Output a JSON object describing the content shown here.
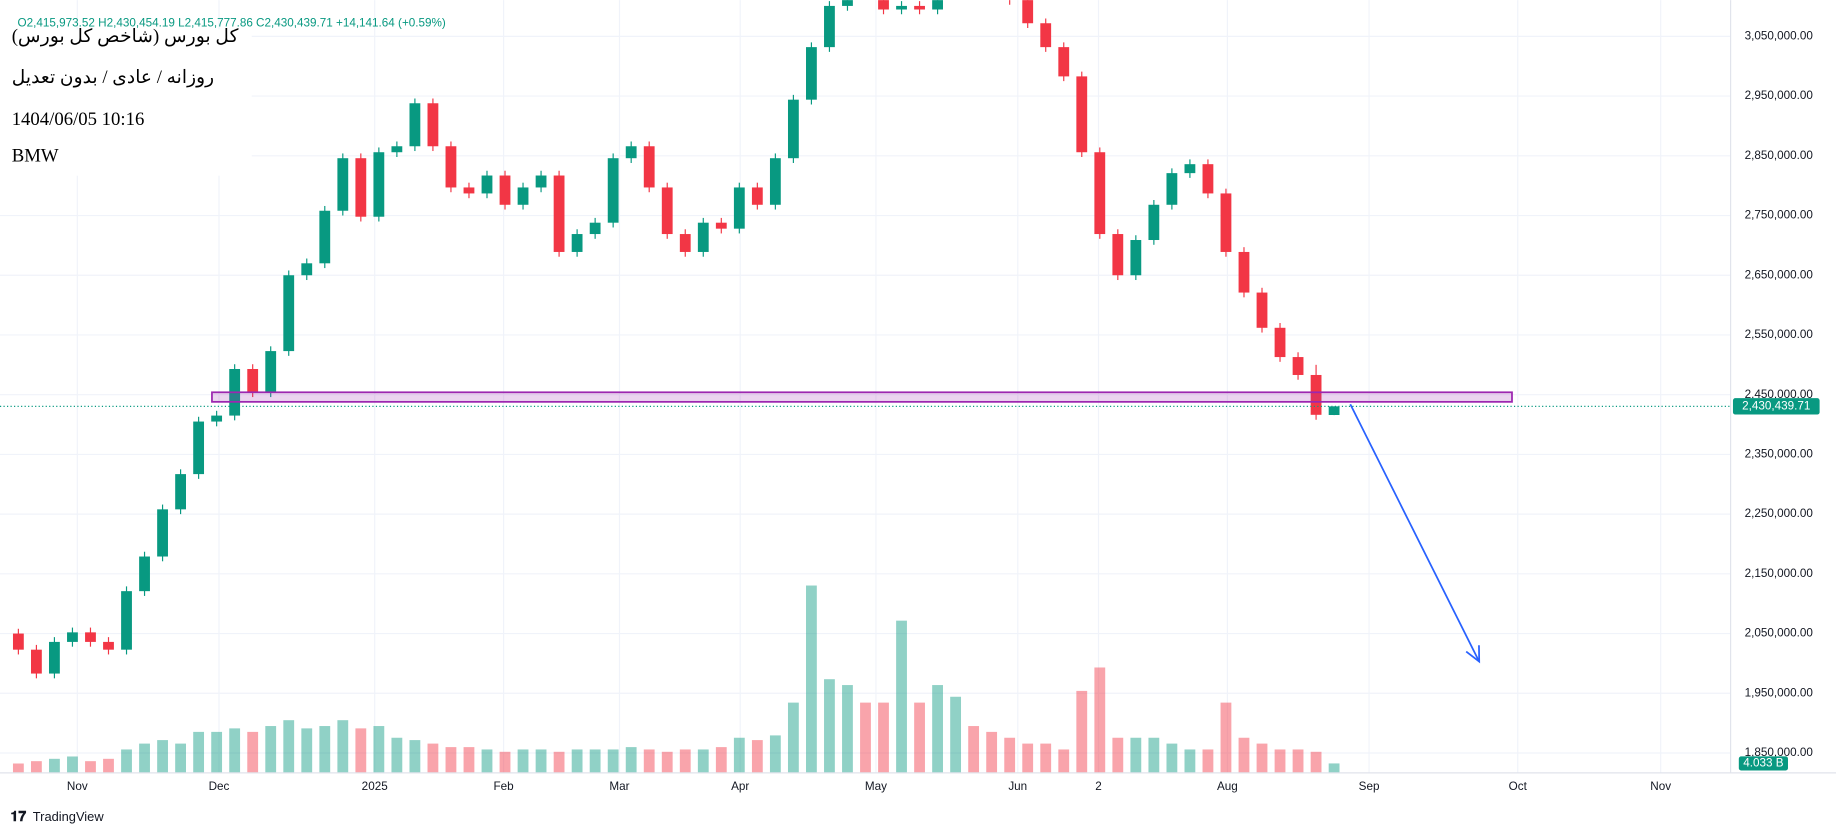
{
  "chart_data": {
    "type": "candlestick",
    "title": "کل بورس (شاخص کل بورس)",
    "subtitle": "روزانه / عادی / بدون تعدیل",
    "timestamp": "1404/06/05 10:16",
    "watermark": "BMW",
    "ohlc_legend": "O2,415,973.52 H2,430,454.19 L2,415,777.86 C2,430,439.71 +14,141.64 (+0.59%)",
    "brand": "TradingView",
    "up_color": "#089981",
    "down_color": "#f23645",
    "open": [
      2050000,
      2023000,
      1983000,
      2036000,
      2052000,
      2036000,
      2023000,
      2121000,
      2179000,
      2258000,
      2317000,
      2405000,
      2415000,
      2493000,
      2454000,
      2523000,
      2650000,
      2670000,
      2758000,
      2846000,
      2748000,
      2856000,
      2866000,
      2938000,
      2866000,
      2797000,
      2787000,
      2817000,
      2768000,
      2797000,
      2817000,
      2689000,
      2719000,
      2738000,
      2846000,
      2866000,
      2797000,
      2719000,
      2689000,
      2738000,
      2728000,
      2797000,
      2768000,
      2846000,
      2944000,
      3032000,
      3101000,
      3130000,
      3120000,
      3095000,
      3101000,
      3095000,
      3130000,
      3140000,
      3130000,
      3120000,
      3111000,
      3072000,
      3032000,
      2983000,
      2856000,
      2719000,
      2650000,
      2709000,
      2768000,
      2821000,
      2836000,
      2787000,
      2689000,
      2621000,
      2562000,
      2513000,
      2483000,
      2415973.52
    ],
    "high": [
      2058000,
      2031000,
      2044000,
      2060000,
      2060000,
      2044000,
      2129000,
      2187000,
      2266000,
      2325000,
      2413000,
      2423000,
      2501000,
      2501000,
      2531000,
      2658000,
      2678000,
      2766000,
      2854000,
      2854000,
      2864000,
      2874000,
      2946000,
      2946000,
      2874000,
      2805000,
      2825000,
      2825000,
      2805000,
      2825000,
      2825000,
      2727000,
      2746000,
      2854000,
      2874000,
      2874000,
      2805000,
      2727000,
      2746000,
      2746000,
      2805000,
      2805000,
      2854000,
      2952000,
      3040000,
      3109000,
      3138000,
      3138000,
      3128000,
      3109000,
      3109000,
      3138000,
      3148000,
      3148000,
      3138000,
      3128000,
      3119000,
      3080000,
      3040000,
      2991000,
      2864000,
      2727000,
      2717000,
      2776000,
      2829000,
      2844000,
      2844000,
      2795000,
      2697000,
      2629000,
      2570000,
      2521000,
      2500000,
      2430454.19
    ],
    "low": [
      2015000,
      1975000,
      1975000,
      2028000,
      2028000,
      2015000,
      2015000,
      2113000,
      2171000,
      2250000,
      2309000,
      2397000,
      2407000,
      2446000,
      2446000,
      2515000,
      2642000,
      2662000,
      2750000,
      2740000,
      2740000,
      2848000,
      2858000,
      2858000,
      2789000,
      2779000,
      2779000,
      2760000,
      2760000,
      2789000,
      2681000,
      2681000,
      2711000,
      2730000,
      2838000,
      2789000,
      2711000,
      2681000,
      2681000,
      2720000,
      2720000,
      2760000,
      2760000,
      2838000,
      2936000,
      3024000,
      3093000,
      3112000,
      3087000,
      3087000,
      3087000,
      3087000,
      3122000,
      3122000,
      3112000,
      3103000,
      3064000,
      3024000,
      2975000,
      2848000,
      2711000,
      2642000,
      2642000,
      2701000,
      2760000,
      2813000,
      2779000,
      2681000,
      2613000,
      2554000,
      2505000,
      2475000,
      2408000,
      2415777.86
    ],
    "close": [
      2023000,
      1983000,
      2036000,
      2052000,
      2036000,
      2023000,
      2121000,
      2179000,
      2258000,
      2317000,
      2405000,
      2415000,
      2493000,
      2454000,
      2523000,
      2650000,
      2670000,
      2758000,
      2846000,
      2748000,
      2856000,
      2866000,
      2938000,
      2866000,
      2797000,
      2787000,
      2817000,
      2768000,
      2797000,
      2817000,
      2689000,
      2719000,
      2738000,
      2846000,
      2866000,
      2797000,
      2719000,
      2689000,
      2738000,
      2728000,
      2797000,
      2768000,
      2846000,
      2944000,
      3032000,
      3101000,
      3130000,
      3120000,
      3095000,
      3101000,
      3095000,
      3130000,
      3140000,
      3130000,
      3120000,
      3111000,
      3072000,
      3032000,
      2983000,
      2856000,
      2719000,
      2650000,
      2709000,
      2768000,
      2821000,
      2836000,
      2787000,
      2689000,
      2621000,
      2562000,
      2513000,
      2483000,
      2416298.07,
      2430439.71
    ],
    "volume": [
      4,
      5,
      6,
      7,
      5,
      6,
      10,
      12.5,
      14,
      12.5,
      17.5,
      17.5,
      19,
      17.5,
      20,
      22.5,
      19,
      20,
      22.5,
      19,
      20,
      15,
      14,
      12.5,
      11,
      11,
      10,
      9,
      10,
      10,
      9,
      10,
      10,
      10,
      11,
      10,
      9,
      10,
      10,
      11,
      15,
      14,
      16,
      30,
      80,
      40,
      37.5,
      30,
      30,
      65,
      30,
      37.5,
      32.5,
      20,
      17.5,
      15,
      12.5,
      12.5,
      10,
      35,
      45,
      15,
      15,
      15,
      12.5,
      10,
      10,
      30,
      15,
      12.5,
      10,
      10,
      9,
      4.033
    ],
    "volume_lim": [
      0,
      170
    ],
    "last_price_label": "2,430,439.71",
    "last_volume_label": "4.033 B",
    "xlim": [
      -0.5,
      95
    ],
    "xticks": [
      {
        "value": 3.27,
        "label": "Nov"
      },
      {
        "value": 11.13,
        "label": "Dec"
      },
      {
        "value": 19.77,
        "label": "2025"
      },
      {
        "value": 26.92,
        "label": "Feb"
      },
      {
        "value": 33.35,
        "label": "Mar"
      },
      {
        "value": 40.05,
        "label": "Apr"
      },
      {
        "value": 47.58,
        "label": "May"
      },
      {
        "value": 55.45,
        "label": "Jun"
      },
      {
        "value": 59.93,
        "label": "2"
      },
      {
        "value": 67.08,
        "label": "Aug"
      },
      {
        "value": 74.94,
        "label": "Sep"
      },
      {
        "value": 83.19,
        "label": "Oct"
      },
      {
        "value": 91.12,
        "label": "Nov"
      }
    ],
    "ylim": [
      1816700,
      3110800
    ],
    "yticks": [
      {
        "value": 1850000,
        "label": "1,850,000.00"
      },
      {
        "value": 1950000,
        "label": "1,950,000.00"
      },
      {
        "value": 2050000,
        "label": "2,050,000.00"
      },
      {
        "value": 2150000,
        "label": "2,150,000.00"
      },
      {
        "value": 2250000,
        "label": "2,250,000.00"
      },
      {
        "value": 2350000,
        "label": "2,350,000.00"
      },
      {
        "value": 2450000,
        "label": "2,450,000.00"
      },
      {
        "value": 2550000,
        "label": "2,550,000.00"
      },
      {
        "value": 2650000,
        "label": "2,650,000.00"
      },
      {
        "value": 2750000,
        "label": "2,750,000.00"
      },
      {
        "value": 2850000,
        "label": "2,850,000.00"
      },
      {
        "value": 2950000,
        "label": "2,950,000.00"
      },
      {
        "value": 3050000,
        "label": "3,050,000.00"
      }
    ],
    "grid": true,
    "zone": {
      "x": [
        10.74,
        82.87
      ],
      "y": [
        2438000,
        2454000
      ],
      "color": "#9c27b0"
    },
    "arrow": {
      "x": [
        73.9,
        81.05
      ],
      "y": [
        2434000,
        2003000
      ],
      "color": "#2962ff"
    }
  }
}
